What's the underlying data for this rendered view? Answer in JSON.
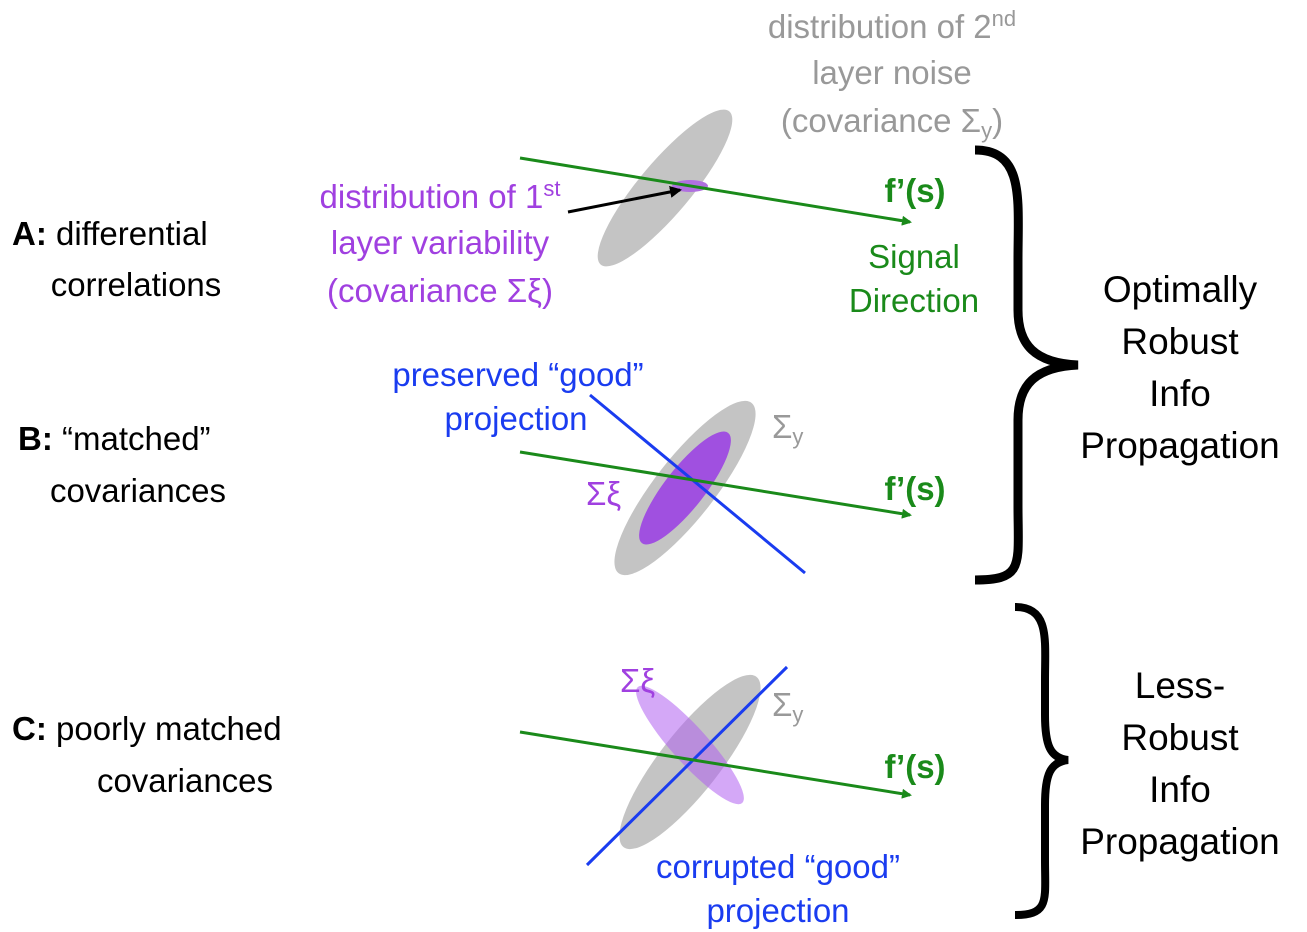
{
  "panels": [
    {
      "letter": "A:",
      "label": [
        "differential",
        "correlations"
      ]
    },
    {
      "letter": "B:",
      "label": [
        "“matched”",
        "covariances"
      ]
    },
    {
      "letter": "C:",
      "label": [
        "poorly matched",
        "covariances"
      ]
    }
  ],
  "panel_a": {
    "noise_label": {
      "line1": "distribution of 2",
      "line1_sup": "nd",
      "line2": "layer noise",
      "line3": "(covariance Σ",
      "line3_sub": "y",
      "line3_end": ")"
    },
    "variability_label": {
      "line1": "distribution of 1",
      "line1_sup": "st",
      "line2": "layer variability",
      "line3": "(covariance Σξ)"
    },
    "signal": "f’(s)",
    "signal_label": [
      "Signal",
      "Direction"
    ]
  },
  "panel_b": {
    "projection_label": [
      "preserved “good”",
      "projection"
    ],
    "sigma_y": "Σ",
    "sigma_y_sub": "y",
    "sigma_xi": "Σξ",
    "signal": "f’(s)"
  },
  "panel_c": {
    "sigma_xi": "Σξ",
    "sigma_y": "Σ",
    "sigma_y_sub": "y",
    "signal": "f’(s)",
    "projection_label": [
      "corrupted “good”",
      "projection"
    ]
  },
  "brace_labels": [
    [
      "Optimally",
      "Robust",
      "Info",
      "Propagation"
    ],
    [
      "Less-",
      "Robust",
      "Info",
      "Propagation"
    ]
  ]
}
